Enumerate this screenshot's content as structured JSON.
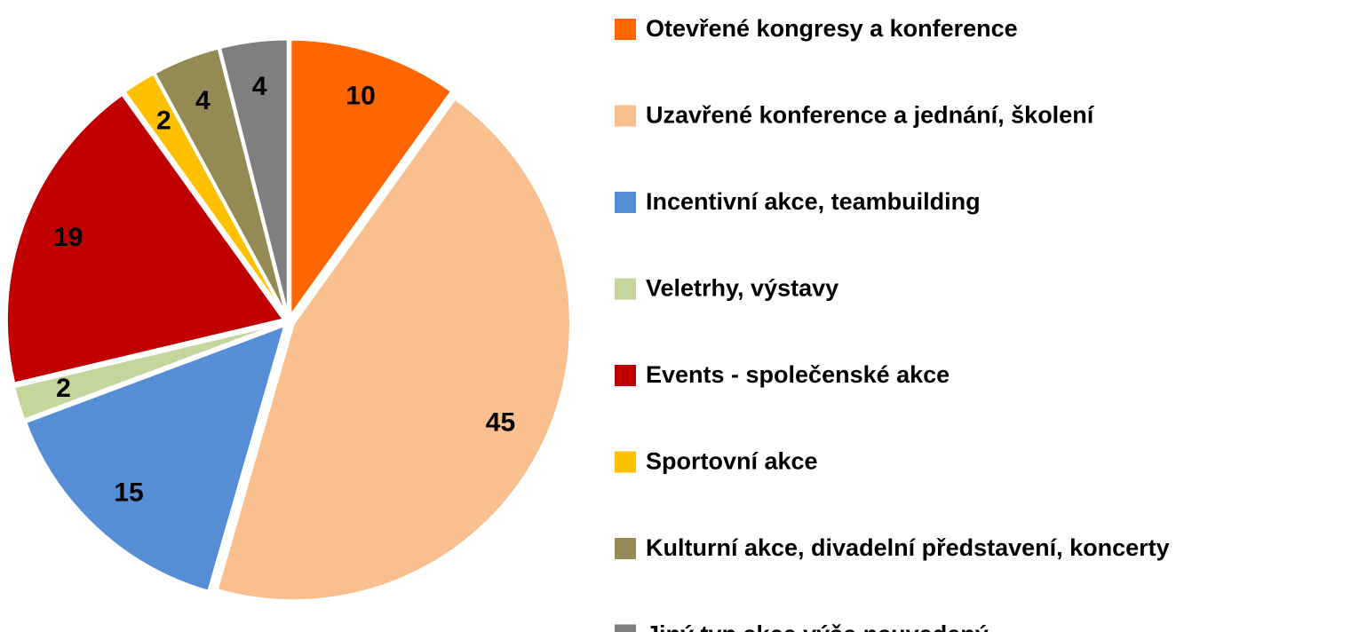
{
  "chart_data": {
    "type": "pie",
    "categories": [
      "Otevřené kongresy a konference",
      "Uzavřené konference a jednání, školení",
      "Incentivní akce, teambuilding",
      "Veletrhy, výstavy",
      "Events - společenské akce",
      "Sportovní akce",
      "Kulturní akce, divadelní představení, koncerty",
      "Jiný typ akce výše neuvedený"
    ],
    "values": [
      10,
      45,
      15,
      2,
      19,
      2,
      4,
      4
    ],
    "colors": [
      "#ff6600",
      "#f9bf8f",
      "#558ed5",
      "#c3d69b",
      "#c00000",
      "#ffc000",
      "#948a54",
      "#7f7f7f"
    ],
    "legend": "right"
  }
}
